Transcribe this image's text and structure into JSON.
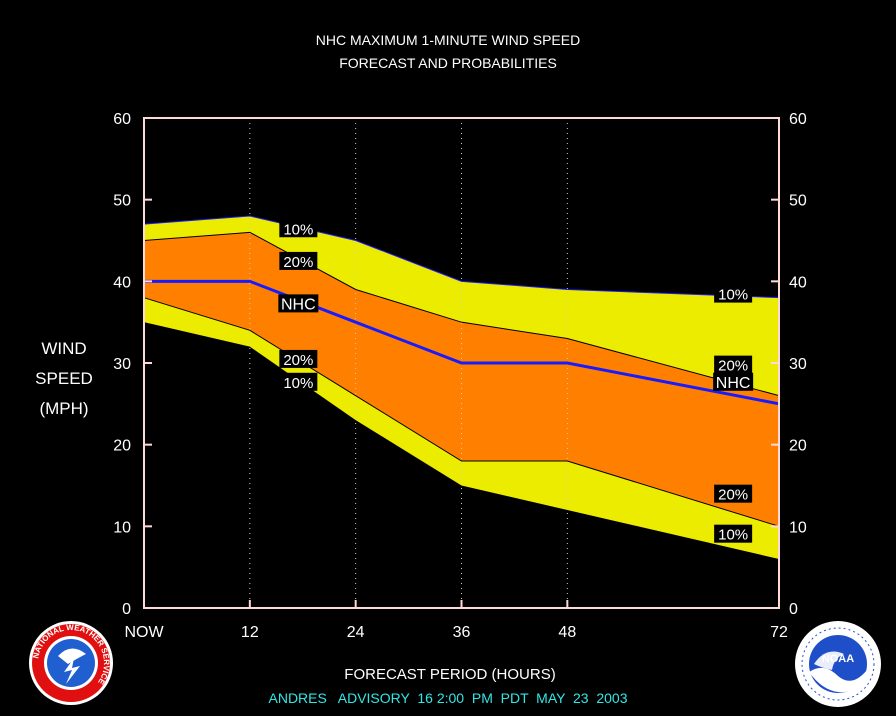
{
  "chart_data": {
    "type": "area",
    "title_line1": "NHC MAXIMUM 1-MINUTE WIND SPEED",
    "title_line2": "FORECAST AND PROBABILITIES",
    "xlabel": "FORECAST PERIOD (HOURS)",
    "ylabel_lines": [
      "WIND",
      "SPEED",
      "(MPH)"
    ],
    "advisory": "ANDRES   ADVISORY  16 2:00  PM  PDT  MAY  23  2003",
    "xlim": [
      0,
      72
    ],
    "ylim": [
      0,
      60
    ],
    "x_ticks": [
      {
        "value": 0,
        "label": "NOW"
      },
      {
        "value": 12,
        "label": "12"
      },
      {
        "value": 24,
        "label": "24"
      },
      {
        "value": 36,
        "label": "36"
      },
      {
        "value": 48,
        "label": "48"
      },
      {
        "value": 72,
        "label": "72"
      }
    ],
    "y_ticks": [
      0,
      10,
      20,
      30,
      40,
      50,
      60
    ],
    "vertical_dotted_gridlines": [
      12,
      24,
      36,
      48
    ],
    "x": [
      0,
      12,
      24,
      36,
      48,
      72
    ],
    "series": [
      {
        "name": "10%",
        "upper": [
          47,
          48,
          45,
          40,
          39,
          38
        ],
        "lower": [
          35,
          32,
          23,
          15,
          12,
          6
        ]
      },
      {
        "name": "20%",
        "upper": [
          45,
          46,
          39,
          35,
          33,
          26
        ],
        "lower": [
          38,
          34,
          26,
          18,
          18,
          10
        ]
      },
      {
        "name": "NHC",
        "values": [
          40,
          40,
          35,
          30,
          30,
          25
        ]
      }
    ],
    "colors": {
      "band_10": "#ecec00",
      "band_20": "#ff8000",
      "nhc_line": "#1a1aff",
      "axes": "#ffd8d8",
      "advisory_text": "#33e6e6"
    },
    "band_labels": [
      {
        "text": "10%",
        "x": 17.5,
        "y": 46.5
      },
      {
        "text": "20%",
        "x": 17.5,
        "y": 42.5
      },
      {
        "text": "NHC",
        "x": 17.5,
        "y": 37.3
      },
      {
        "text": "20%",
        "x": 17.5,
        "y": 30.5
      },
      {
        "text": "10%",
        "x": 17.5,
        "y": 27.7
      },
      {
        "text": "10%",
        "x": 66.8,
        "y": 38.5
      },
      {
        "text": "20%",
        "x": 66.8,
        "y": 29.8
      },
      {
        "text": "NHC",
        "x": 66.8,
        "y": 27.7
      },
      {
        "text": "20%",
        "x": 66.8,
        "y": 14.0
      },
      {
        "text": "10%",
        "x": 66.8,
        "y": 9.1
      }
    ]
  },
  "logos": {
    "nws": {
      "name": "national-weather-service-logo",
      "text": "NATIONAL WEATHER SERVICE"
    },
    "noaa": {
      "name": "noaa-logo",
      "text": "NOAA"
    }
  }
}
